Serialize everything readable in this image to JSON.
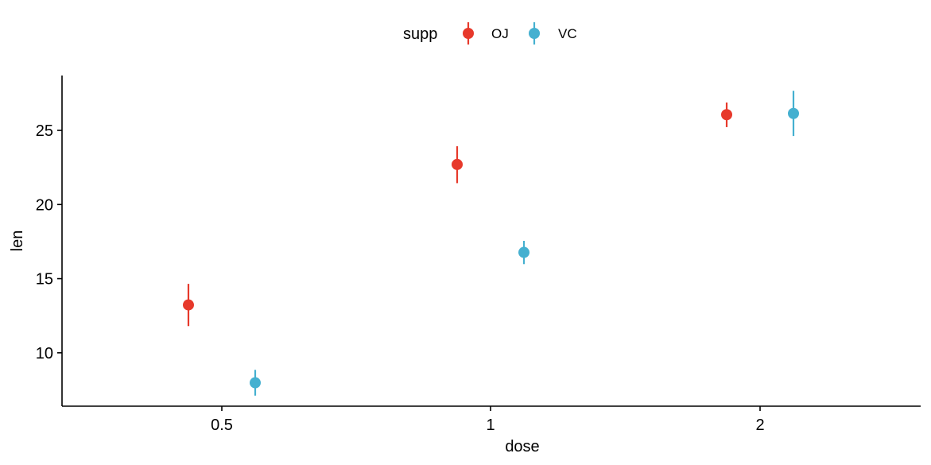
{
  "chart_data": {
    "type": "scatter",
    "xlabel": "dose",
    "ylabel": "len",
    "x_categories": [
      "0.5",
      "1",
      "2"
    ],
    "y_ticks": [
      10,
      15,
      20,
      25
    ],
    "ylim": [
      6.4,
      28.7
    ],
    "grid": false,
    "legend": {
      "title": "supp",
      "position": "top-center"
    },
    "error_bars": true,
    "series": [
      {
        "name": "OJ",
        "color": "#E7392B",
        "points": [
          {
            "x": "0.5",
            "y": 13.23,
            "ymin": 11.8,
            "ymax": 14.65
          },
          {
            "x": "1",
            "y": 22.7,
            "ymin": 21.44,
            "ymax": 23.93
          },
          {
            "x": "2",
            "y": 26.06,
            "ymin": 25.22,
            "ymax": 26.88
          }
        ]
      },
      {
        "name": "VC",
        "color": "#45B0D0",
        "points": [
          {
            "x": "0.5",
            "y": 7.98,
            "ymin": 7.11,
            "ymax": 8.85
          },
          {
            "x": "1",
            "y": 16.77,
            "ymin": 15.98,
            "ymax": 17.55
          },
          {
            "x": "2",
            "y": 26.14,
            "ymin": 24.62,
            "ymax": 27.67
          }
        ]
      }
    ]
  }
}
